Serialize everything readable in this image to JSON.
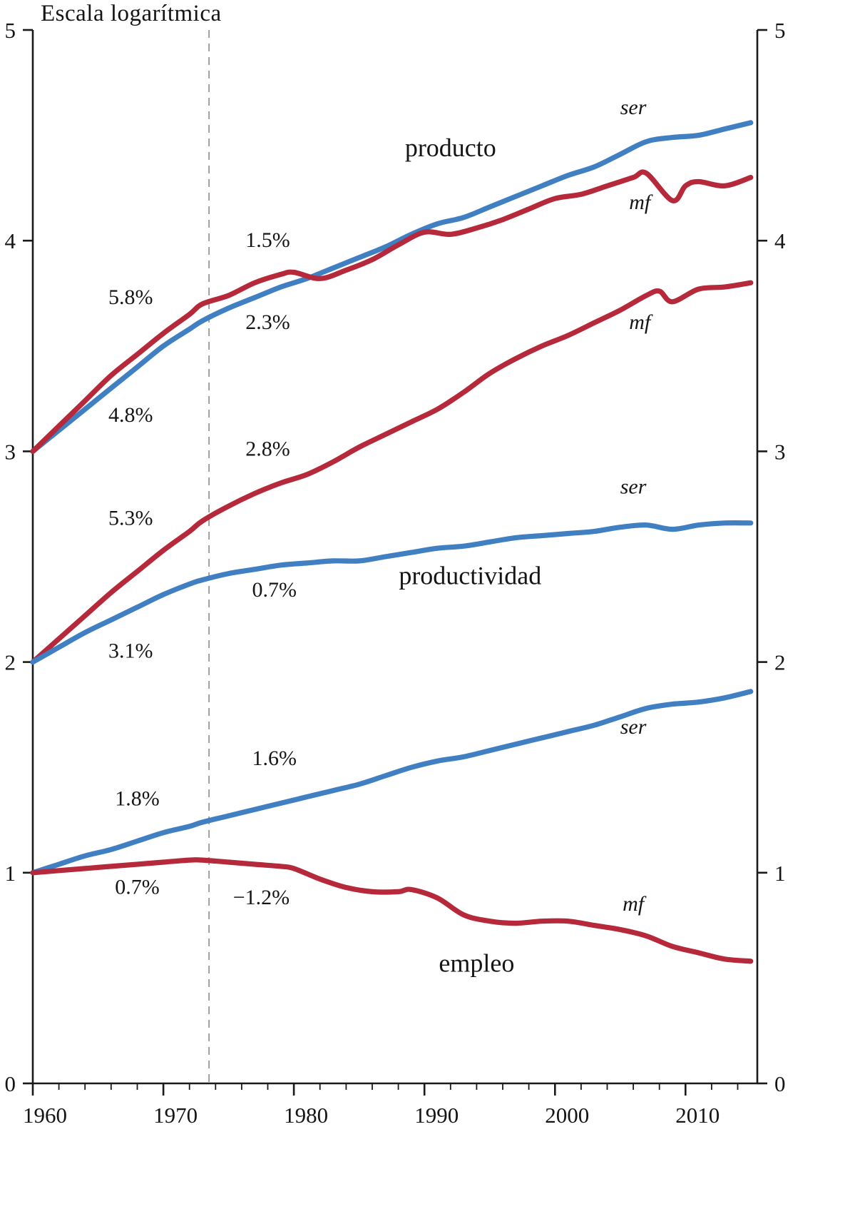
{
  "chart": {
    "title": "Escala logarítmica"
  },
  "chart_data": {
    "type": "line",
    "title": "Escala logarítmica",
    "x_range": [
      1960,
      2015.5
    ],
    "y_range": [
      0,
      5
    ],
    "x_ticks": [
      1960,
      1970,
      1980,
      1990,
      2000,
      2010
    ],
    "x_minor_tick_step": 2,
    "y_ticks": [
      0,
      1,
      2,
      3,
      4,
      5
    ],
    "dashed_vline_year": 1973.5,
    "axis_color": "#1a1a1a",
    "dashed_line_color": "#8c8c8c",
    "colors": {
      "mf": "#b5293b",
      "ser": "#4080c2"
    },
    "series": [
      {
        "name": "producto-ser",
        "group": "producto",
        "sector": "ser",
        "points": [
          [
            1960,
            3.0
          ],
          [
            1962,
            3.1
          ],
          [
            1964,
            3.2
          ],
          [
            1966,
            3.3
          ],
          [
            1968,
            3.4
          ],
          [
            1970,
            3.5
          ],
          [
            1972,
            3.58
          ],
          [
            1973,
            3.62
          ],
          [
            1975,
            3.68
          ],
          [
            1977,
            3.73
          ],
          [
            1979,
            3.78
          ],
          [
            1981,
            3.82
          ],
          [
            1983,
            3.87
          ],
          [
            1985,
            3.92
          ],
          [
            1987,
            3.97
          ],
          [
            1989,
            4.03
          ],
          [
            1991,
            4.08
          ],
          [
            1993,
            4.11
          ],
          [
            1995,
            4.16
          ],
          [
            1997,
            4.21
          ],
          [
            1999,
            4.26
          ],
          [
            2001,
            4.31
          ],
          [
            2003,
            4.35
          ],
          [
            2005,
            4.41
          ],
          [
            2007,
            4.47
          ],
          [
            2009,
            4.49
          ],
          [
            2011,
            4.5
          ],
          [
            2013,
            4.53
          ],
          [
            2015,
            4.56
          ]
        ]
      },
      {
        "name": "producto-mf",
        "group": "producto",
        "sector": "mf",
        "points": [
          [
            1960,
            3.0
          ],
          [
            1962,
            3.12
          ],
          [
            1964,
            3.24
          ],
          [
            1966,
            3.36
          ],
          [
            1968,
            3.46
          ],
          [
            1970,
            3.56
          ],
          [
            1972,
            3.65
          ],
          [
            1973,
            3.7
          ],
          [
            1975,
            3.74
          ],
          [
            1977,
            3.8
          ],
          [
            1979,
            3.84
          ],
          [
            1980,
            3.85
          ],
          [
            1982,
            3.82
          ],
          [
            1984,
            3.86
          ],
          [
            1986,
            3.91
          ],
          [
            1988,
            3.98
          ],
          [
            1990,
            4.04
          ],
          [
            1992,
            4.03
          ],
          [
            1994,
            4.06
          ],
          [
            1996,
            4.1
          ],
          [
            1998,
            4.15
          ],
          [
            2000,
            4.2
          ],
          [
            2002,
            4.22
          ],
          [
            2004,
            4.26
          ],
          [
            2006,
            4.3
          ],
          [
            2007,
            4.32
          ],
          [
            2009,
            4.19
          ],
          [
            2010,
            4.26
          ],
          [
            2011,
            4.28
          ],
          [
            2013,
            4.26
          ],
          [
            2015,
            4.3
          ]
        ]
      },
      {
        "name": "productividad-mf",
        "group": "productividad",
        "sector": "mf",
        "points": [
          [
            1960,
            2.0
          ],
          [
            1962,
            2.11
          ],
          [
            1964,
            2.22
          ],
          [
            1966,
            2.33
          ],
          [
            1968,
            2.43
          ],
          [
            1970,
            2.53
          ],
          [
            1972,
            2.62
          ],
          [
            1973,
            2.67
          ],
          [
            1975,
            2.74
          ],
          [
            1977,
            2.8
          ],
          [
            1979,
            2.85
          ],
          [
            1981,
            2.89
          ],
          [
            1983,
            2.95
          ],
          [
            1985,
            3.02
          ],
          [
            1987,
            3.08
          ],
          [
            1989,
            3.14
          ],
          [
            1991,
            3.2
          ],
          [
            1993,
            3.28
          ],
          [
            1995,
            3.37
          ],
          [
            1997,
            3.44
          ],
          [
            1999,
            3.5
          ],
          [
            2001,
            3.55
          ],
          [
            2003,
            3.61
          ],
          [
            2005,
            3.67
          ],
          [
            2007,
            3.74
          ],
          [
            2008,
            3.76
          ],
          [
            2009,
            3.71
          ],
          [
            2011,
            3.77
          ],
          [
            2013,
            3.78
          ],
          [
            2015,
            3.8
          ]
        ]
      },
      {
        "name": "productividad-ser",
        "group": "productividad",
        "sector": "ser",
        "points": [
          [
            1960,
            2.0
          ],
          [
            1962,
            2.07
          ],
          [
            1964,
            2.14
          ],
          [
            1966,
            2.2
          ],
          [
            1968,
            2.26
          ],
          [
            1970,
            2.32
          ],
          [
            1972,
            2.37
          ],
          [
            1973,
            2.39
          ],
          [
            1975,
            2.42
          ],
          [
            1977,
            2.44
          ],
          [
            1979,
            2.46
          ],
          [
            1981,
            2.47
          ],
          [
            1983,
            2.48
          ],
          [
            1985,
            2.48
          ],
          [
            1987,
            2.5
          ],
          [
            1989,
            2.52
          ],
          [
            1991,
            2.54
          ],
          [
            1993,
            2.55
          ],
          [
            1995,
            2.57
          ],
          [
            1997,
            2.59
          ],
          [
            1999,
            2.6
          ],
          [
            2001,
            2.61
          ],
          [
            2003,
            2.62
          ],
          [
            2005,
            2.64
          ],
          [
            2007,
            2.65
          ],
          [
            2009,
            2.63
          ],
          [
            2011,
            2.65
          ],
          [
            2013,
            2.66
          ],
          [
            2015,
            2.66
          ]
        ]
      },
      {
        "name": "empleo-ser",
        "group": "empleo",
        "sector": "ser",
        "points": [
          [
            1960,
            1.0
          ],
          [
            1962,
            1.04
          ],
          [
            1964,
            1.08
          ],
          [
            1966,
            1.11
          ],
          [
            1968,
            1.15
          ],
          [
            1970,
            1.19
          ],
          [
            1972,
            1.22
          ],
          [
            1973,
            1.24
          ],
          [
            1975,
            1.27
          ],
          [
            1977,
            1.3
          ],
          [
            1979,
            1.33
          ],
          [
            1981,
            1.36
          ],
          [
            1983,
            1.39
          ],
          [
            1985,
            1.42
          ],
          [
            1987,
            1.46
          ],
          [
            1989,
            1.5
          ],
          [
            1991,
            1.53
          ],
          [
            1993,
            1.55
          ],
          [
            1995,
            1.58
          ],
          [
            1997,
            1.61
          ],
          [
            1999,
            1.64
          ],
          [
            2001,
            1.67
          ],
          [
            2003,
            1.7
          ],
          [
            2005,
            1.74
          ],
          [
            2007,
            1.78
          ],
          [
            2009,
            1.8
          ],
          [
            2011,
            1.81
          ],
          [
            2013,
            1.83
          ],
          [
            2015,
            1.86
          ]
        ]
      },
      {
        "name": "empleo-mf",
        "group": "empleo",
        "sector": "mf",
        "points": [
          [
            1960,
            1.0
          ],
          [
            1962,
            1.01
          ],
          [
            1964,
            1.02
          ],
          [
            1966,
            1.03
          ],
          [
            1968,
            1.04
          ],
          [
            1970,
            1.05
          ],
          [
            1972,
            1.06
          ],
          [
            1973,
            1.06
          ],
          [
            1975,
            1.05
          ],
          [
            1977,
            1.04
          ],
          [
            1979,
            1.03
          ],
          [
            1980,
            1.02
          ],
          [
            1982,
            0.97
          ],
          [
            1984,
            0.93
          ],
          [
            1986,
            0.91
          ],
          [
            1988,
            0.91
          ],
          [
            1989,
            0.92
          ],
          [
            1991,
            0.88
          ],
          [
            1993,
            0.8
          ],
          [
            1995,
            0.77
          ],
          [
            1997,
            0.76
          ],
          [
            1999,
            0.77
          ],
          [
            2001,
            0.77
          ],
          [
            2003,
            0.75
          ],
          [
            2005,
            0.73
          ],
          [
            2007,
            0.7
          ],
          [
            2009,
            0.65
          ],
          [
            2011,
            0.62
          ],
          [
            2013,
            0.59
          ],
          [
            2015,
            0.58
          ]
        ]
      }
    ],
    "group_labels": [
      {
        "text": "producto",
        "year": 1992,
        "value": 4.4
      },
      {
        "text": "productividad",
        "year": 1993.5,
        "value": 2.37
      },
      {
        "text": "empleo",
        "year": 1994,
        "value": 0.53
      }
    ],
    "sector_tags": [
      {
        "text": "ser",
        "year": 2006,
        "value": 4.6
      },
      {
        "text": "mf",
        "year": 2006.5,
        "value": 4.15
      },
      {
        "text": "mf",
        "year": 2006.5,
        "value": 3.58
      },
      {
        "text": "ser",
        "year": 2006,
        "value": 2.8
      },
      {
        "text": "ser",
        "year": 2006,
        "value": 1.66
      },
      {
        "text": "mf",
        "year": 2006,
        "value": 0.82
      }
    ],
    "growth_annotations": [
      {
        "text": "5.8%",
        "year": 1967.5,
        "value": 3.7
      },
      {
        "text": "4.8%",
        "year": 1967.5,
        "value": 3.14
      },
      {
        "text": "1.5%",
        "year": 1978,
        "value": 3.97
      },
      {
        "text": "2.3%",
        "year": 1978,
        "value": 3.58
      },
      {
        "text": "5.3%",
        "year": 1967.5,
        "value": 2.65
      },
      {
        "text": "3.1%",
        "year": 1967.5,
        "value": 2.02
      },
      {
        "text": "2.8%",
        "year": 1978,
        "value": 2.98
      },
      {
        "text": "0.7%",
        "year": 1978.5,
        "value": 2.31
      },
      {
        "text": "1.8%",
        "year": 1968,
        "value": 1.32
      },
      {
        "text": "0.7%",
        "year": 1968,
        "value": 0.9
      },
      {
        "text": "1.6%",
        "year": 1978.5,
        "value": 1.51
      },
      {
        "text": "−1.2%",
        "year": 1977.5,
        "value": 0.85
      }
    ]
  }
}
